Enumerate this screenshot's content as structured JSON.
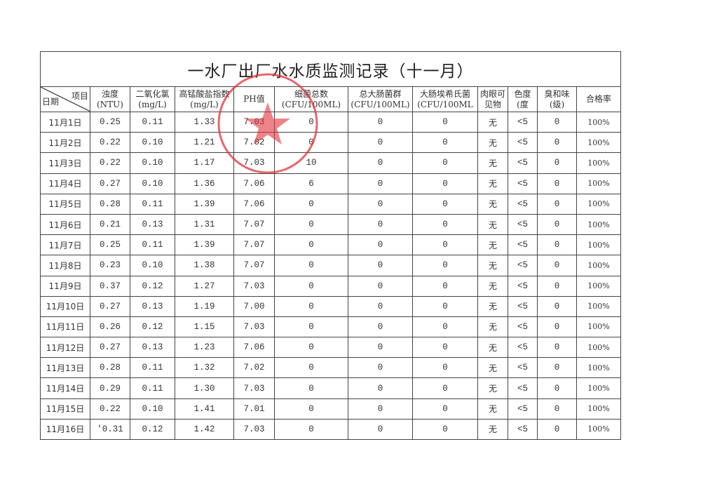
{
  "title": "一水厂出厂水水质监测记录（十一月）",
  "header": {
    "date_label": "日期",
    "item_label": "项目",
    "columns": [
      [
        "浊度",
        "(NTU)"
      ],
      [
        "二氧化氯",
        "(mg/L)"
      ],
      [
        "高锰酸盐指数",
        "(mg/L)"
      ],
      [
        "PH值",
        ""
      ],
      [
        "细菌总数",
        "(CFU/100ML)"
      ],
      [
        "总大肠菌群",
        "(CFU/100ML)"
      ],
      [
        "大肠埃希氏菌",
        "(CFU/100ML"
      ],
      [
        "肉眼可",
        "见物"
      ],
      [
        "色度",
        "(度"
      ],
      [
        "臭和味",
        "(级)"
      ],
      [
        "合格率",
        ""
      ]
    ]
  },
  "rows": [
    [
      "11月1日",
      "0.25",
      "0.11",
      "1.33",
      "7.03",
      "0",
      "0",
      "0",
      "无",
      "<5",
      "0",
      "100%"
    ],
    [
      "11月2日",
      "0.22",
      "0.10",
      "1.21",
      "7.02",
      "0",
      "0",
      "0",
      "无",
      "<5",
      "0",
      "100%"
    ],
    [
      "11月3日",
      "0.22",
      "0.10",
      "1.17",
      "7.03",
      "10",
      "0",
      "0",
      "无",
      "<5",
      "0",
      "100%"
    ],
    [
      "11月4日",
      "0.27",
      "0.10",
      "1.36",
      "7.06",
      "6",
      "0",
      "0",
      "无",
      "<5",
      "0",
      "100%"
    ],
    [
      "11月5日",
      "0.28",
      "0.11",
      "1.39",
      "7.06",
      "0",
      "0",
      "0",
      "无",
      "<5",
      "0",
      "100%"
    ],
    [
      "11月6日",
      "0.21",
      "0.13",
      "1.31",
      "7.07",
      "0",
      "0",
      "0",
      "无",
      "<5",
      "0",
      "100%"
    ],
    [
      "11月7日",
      "0.25",
      "0.11",
      "1.39",
      "7.07",
      "0",
      "0",
      "0",
      "无",
      "<5",
      "0",
      "100%"
    ],
    [
      "11月8日",
      "0.23",
      "0.10",
      "1.38",
      "7.07",
      "0",
      "0",
      "0",
      "无",
      "<5",
      "0",
      "100%"
    ],
    [
      "11月9日",
      "0.37",
      "0.12",
      "1.27",
      "7.03",
      "0",
      "0",
      "0",
      "无",
      "<5",
      "0",
      "100%"
    ],
    [
      "11月10日",
      "0.27",
      "0.13",
      "1.19",
      "7.00",
      "0",
      "0",
      "0",
      "无",
      "<5",
      "0",
      "100%"
    ],
    [
      "11月11日",
      "0.26",
      "0.12",
      "1.15",
      "7.03",
      "0",
      "0",
      "0",
      "无",
      "<5",
      "0",
      "100%"
    ],
    [
      "11月12日",
      "0.27",
      "0.13",
      "1.23",
      "7.06",
      "0",
      "0",
      "0",
      "无",
      "<5",
      "0",
      "100%"
    ],
    [
      "11月13日",
      "0.28",
      "0.11",
      "1.32",
      "7.02",
      "0",
      "0",
      "0",
      "无",
      "<5",
      "0",
      "100%"
    ],
    [
      "11月14日",
      "0.29",
      "0.11",
      "1.30",
      "7.03",
      "0",
      "0",
      "0",
      "无",
      "<5",
      "0",
      "100%"
    ],
    [
      "11月15日",
      "0.22",
      "0.10",
      "1.41",
      "7.01",
      "0",
      "0",
      "0",
      "无",
      "<5",
      "0",
      "100%"
    ],
    [
      "11月16日",
      "'0.31",
      "0.12",
      "1.42",
      "7.03",
      "0",
      "0",
      "0",
      "无",
      "<5",
      "0",
      "100%"
    ]
  ],
  "stamp": {
    "color": "#e0323a",
    "icon": "star-seal"
  }
}
